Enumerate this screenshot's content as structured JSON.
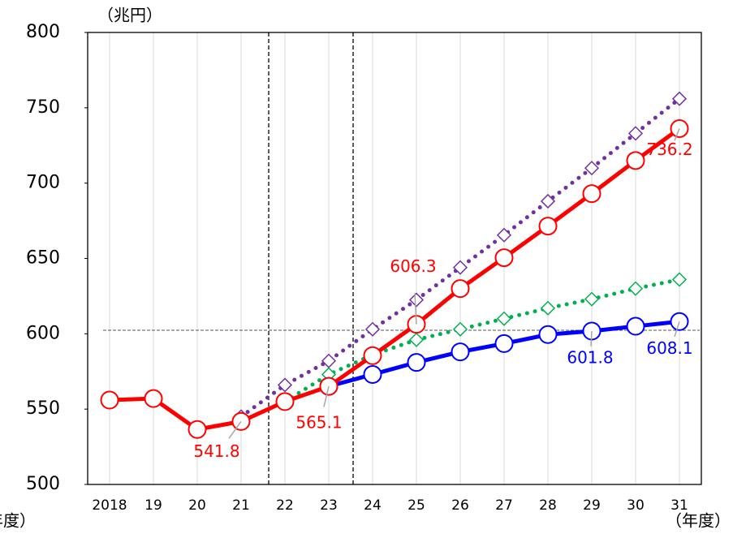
{
  "chart_data": {
    "type": "line",
    "y_label": "（兆円）",
    "x_label": "（年度）",
    "categories": [
      "2018",
      "19",
      "20",
      "21",
      "22",
      "23",
      "24",
      "25",
      "26",
      "27",
      "28",
      "29",
      "30",
      "31"
    ],
    "series": [
      {
        "color": "#7030a0",
        "style": "dotted",
        "marker": "diamond",
        "values": [
          null,
          null,
          null,
          545,
          566,
          582,
          603,
          622.5,
          644,
          665.5,
          688,
          710,
          733,
          756
        ]
      },
      {
        "color": "#00b050",
        "style": "dotted",
        "marker": "diamond",
        "values": [
          null,
          null,
          null,
          null,
          555,
          573,
          586,
          596,
          603,
          610,
          617,
          623,
          630,
          636
        ]
      },
      {
        "color": "#0000ff",
        "style": "solid",
        "marker": "circle",
        "values": [
          null,
          null,
          null,
          null,
          null,
          565.1,
          573,
          581,
          588,
          593.5,
          599.5,
          601.8,
          605,
          608.1
        ]
      },
      {
        "color": "#ff0000",
        "style": "solid",
        "marker": "circle",
        "values": [
          556,
          557,
          536.5,
          541.8,
          555,
          565.1,
          585.5,
          606.3,
          630,
          650.5,
          671.5,
          693,
          715,
          736.2
        ]
      }
    ],
    "ylim": [
      500,
      800
    ],
    "yticks": [
      500,
      550,
      600,
      650,
      700,
      750,
      800
    ],
    "grid": true
  }
}
